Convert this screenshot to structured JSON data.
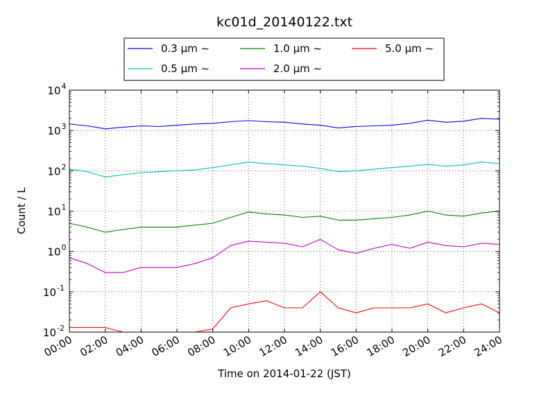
{
  "chart_data": {
    "type": "line",
    "title": "kc01d_20140122.txt",
    "xlabel": "Time on 2014-01-22 (JST)",
    "ylabel": "Count / L",
    "x_unit": "hours",
    "xlim": [
      0,
      24
    ],
    "ylim": [
      0.01,
      10000
    ],
    "yscale": "log",
    "grid": true,
    "legend_position": "top-center",
    "x_ticks": [
      {
        "value": 0,
        "label": "00:00"
      },
      {
        "value": 2,
        "label": "02:00"
      },
      {
        "value": 4,
        "label": "04:00"
      },
      {
        "value": 6,
        "label": "06:00"
      },
      {
        "value": 8,
        "label": "08:00"
      },
      {
        "value": 10,
        "label": "10:00"
      },
      {
        "value": 12,
        "label": "12:00"
      },
      {
        "value": 14,
        "label": "14:00"
      },
      {
        "value": 16,
        "label": "16:00"
      },
      {
        "value": 18,
        "label": "18:00"
      },
      {
        "value": 20,
        "label": "20:00"
      },
      {
        "value": 22,
        "label": "22:00"
      },
      {
        "value": 24,
        "label": "24:00"
      }
    ],
    "y_ticks": [
      {
        "value": 0.01,
        "base": "10",
        "exp": "-2"
      },
      {
        "value": 0.1,
        "base": "10",
        "exp": "-1"
      },
      {
        "value": 1,
        "base": "10",
        "exp": "0"
      },
      {
        "value": 10,
        "base": "10",
        "exp": "1"
      },
      {
        "value": 100,
        "base": "10",
        "exp": "2"
      },
      {
        "value": 1000,
        "base": "10",
        "exp": "3"
      },
      {
        "value": 10000,
        "base": "10",
        "exp": "4"
      }
    ],
    "series": [
      {
        "name": "0.3 μm ~",
        "color": "#0000ff",
        "x": [
          0,
          1,
          2,
          3,
          4,
          5,
          6,
          7,
          8,
          9,
          10,
          11,
          12,
          13,
          14,
          15,
          16,
          17,
          18,
          19,
          20,
          21,
          22,
          23,
          24
        ],
        "y": [
          1450,
          1300,
          1100,
          1200,
          1300,
          1250,
          1350,
          1450,
          1500,
          1650,
          1750,
          1650,
          1600,
          1450,
          1350,
          1150,
          1250,
          1300,
          1350,
          1500,
          1800,
          1600,
          1700,
          2000,
          1900
        ]
      },
      {
        "name": "0.5 μm ~",
        "color": "#00bfbf",
        "x": [
          0,
          1,
          2,
          3,
          4,
          5,
          6,
          7,
          8,
          9,
          10,
          11,
          12,
          13,
          14,
          15,
          16,
          17,
          18,
          19,
          20,
          21,
          22,
          23,
          24
        ],
        "y": [
          110,
          95,
          70,
          80,
          90,
          95,
          100,
          105,
          120,
          140,
          165,
          150,
          140,
          130,
          115,
          95,
          100,
          110,
          120,
          130,
          145,
          130,
          140,
          165,
          150
        ]
      },
      {
        "name": "1.0 μm ~",
        "color": "#008000",
        "x": [
          0,
          1,
          2,
          3,
          4,
          5,
          6,
          7,
          8,
          9,
          10,
          11,
          12,
          13,
          14,
          15,
          16,
          17,
          18,
          19,
          20,
          21,
          22,
          23,
          24
        ],
        "y": [
          5,
          4,
          3,
          3.5,
          4,
          4,
          4,
          4.5,
          5,
          7,
          9.5,
          8.5,
          8,
          7,
          7.5,
          6,
          6,
          6.5,
          7,
          8,
          10,
          8,
          7.5,
          9,
          10
        ]
      },
      {
        "name": "2.0 μm ~",
        "color": "#bf00bf",
        "x": [
          0,
          1,
          2,
          3,
          4,
          5,
          6,
          7,
          8,
          9,
          10,
          11,
          12,
          13,
          14,
          15,
          16,
          17,
          18,
          19,
          20,
          21,
          22,
          23,
          24
        ],
        "y": [
          0.7,
          0.5,
          0.3,
          0.3,
          0.4,
          0.4,
          0.4,
          0.5,
          0.7,
          1.4,
          1.8,
          1.7,
          1.6,
          1.3,
          2,
          1.1,
          0.9,
          1.2,
          1.5,
          1.2,
          1.7,
          1.4,
          1.3,
          1.6,
          1.5
        ]
      },
      {
        "name": "5.0 μm ~",
        "color": "#ff0000",
        "x": [
          0,
          1,
          2,
          3,
          4,
          5,
          6,
          7,
          8,
          9,
          10,
          11,
          12,
          13,
          14,
          15,
          16,
          17,
          18,
          19,
          20,
          21,
          22,
          23,
          24
        ],
        "y": [
          0.013,
          0.013,
          0.013,
          0.01,
          0.01,
          0.01,
          0.01,
          0.01,
          0.012,
          0.04,
          0.05,
          0.06,
          0.04,
          0.04,
          0.1,
          0.04,
          0.03,
          0.04,
          0.04,
          0.04,
          0.05,
          0.03,
          0.04,
          0.05,
          0.03
        ]
      }
    ]
  }
}
